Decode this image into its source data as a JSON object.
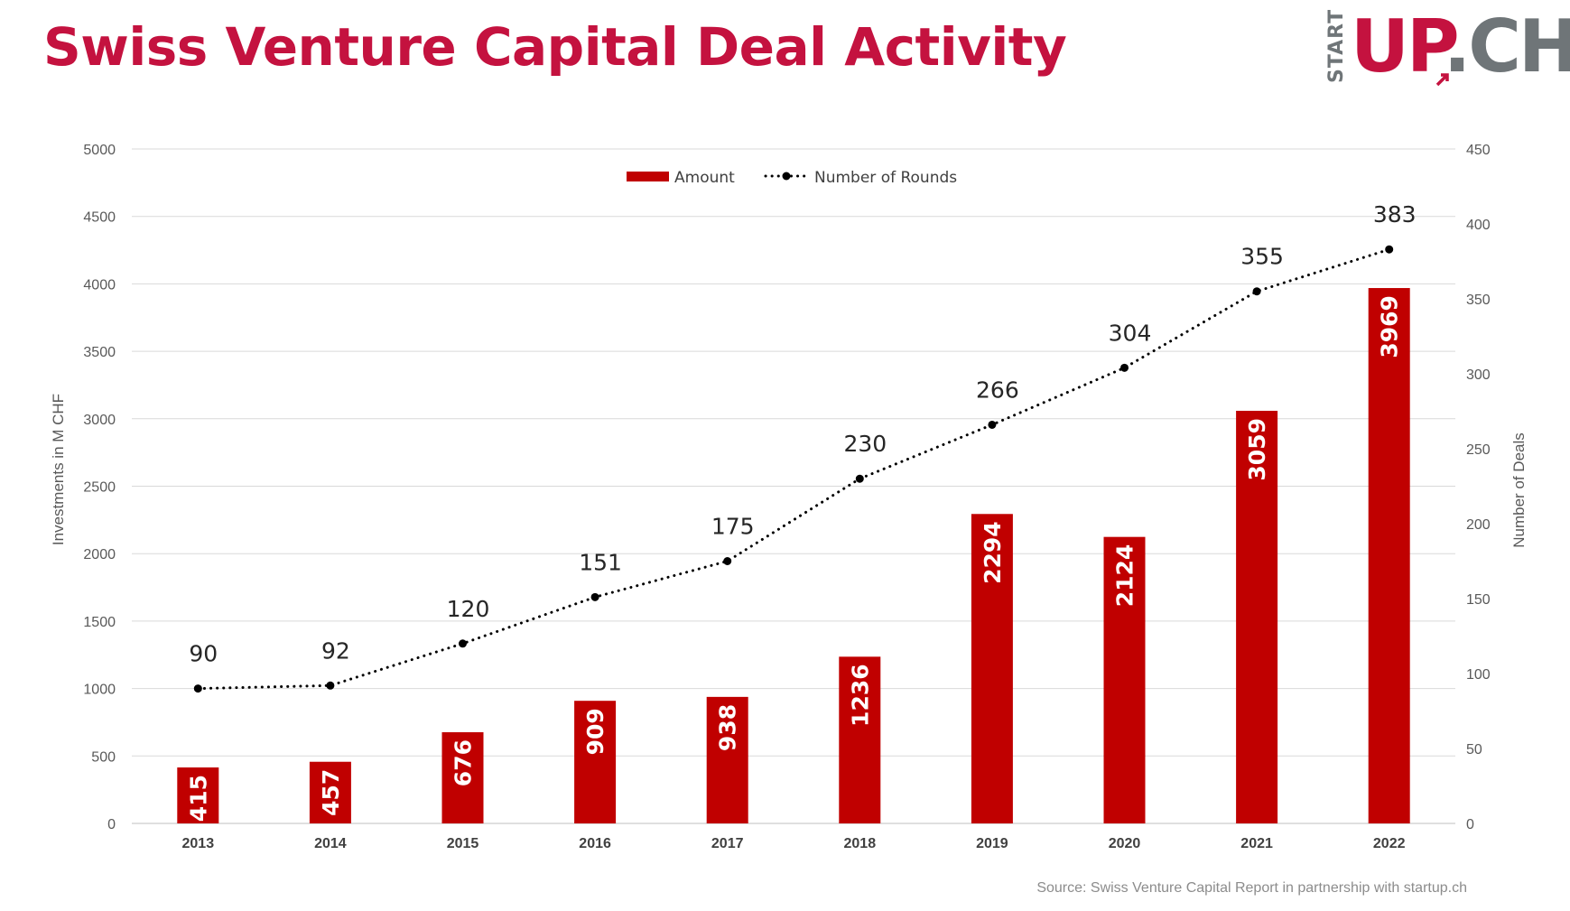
{
  "header": {
    "title": "Swiss Venture Capital Deal Activity",
    "logo_small": "START",
    "logo_up": "UP",
    "logo_ch": "CH"
  },
  "source": "Source: Swiss Venture Capital Report in partnership with startup.ch",
  "colors": {
    "title": "#c4123f",
    "bar": "#c00000",
    "line": "#000000",
    "logo_grey": "#6f7578"
  },
  "chart_data": {
    "type": "bar",
    "categories": [
      "2013",
      "2014",
      "2015",
      "2016",
      "2017",
      "2018",
      "2019",
      "2020",
      "2021",
      "2022"
    ],
    "series": [
      {
        "name": "Amount",
        "type": "bar",
        "axis": "left",
        "values": [
          415,
          457,
          676,
          909,
          938,
          1236,
          2294,
          2124,
          3059,
          3969
        ]
      },
      {
        "name": "Number of Rounds",
        "type": "line",
        "axis": "right",
        "style": "dotted",
        "values": [
          90,
          92,
          120,
          151,
          175,
          230,
          266,
          304,
          355,
          383
        ]
      }
    ],
    "ylabel": "Investments in M CHF",
    "y2label": "Number of Deals",
    "ylim": [
      0,
      5000
    ],
    "yticks": [
      0,
      500,
      1000,
      1500,
      2000,
      2500,
      3000,
      3500,
      4000,
      4500,
      5000
    ],
    "y2lim": [
      0,
      450
    ],
    "y2ticks": [
      0,
      50,
      100,
      150,
      200,
      250,
      300,
      350,
      400,
      450
    ],
    "grid": true,
    "legend": "top-center"
  }
}
